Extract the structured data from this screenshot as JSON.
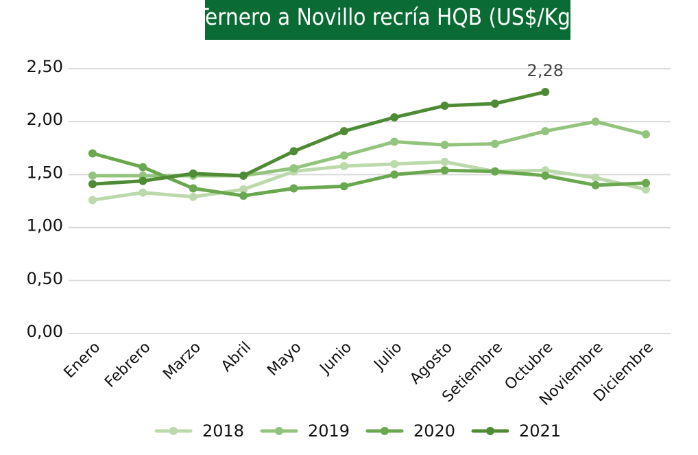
{
  "chart_data": {
    "type": "line",
    "title": "Ternero a Novillo recría HQB (US$/Kg)",
    "categories": [
      "Enero",
      "Febrero",
      "Marzo",
      "Abril",
      "Mayo",
      "Junio",
      "Julio",
      "Agosto",
      "Setiembre",
      "Octubre",
      "Noviembre",
      "Diciembre"
    ],
    "y_ticks": [
      "0,00",
      "0,50",
      "1,00",
      "1,50",
      "2,00",
      "2,50"
    ],
    "ylim": [
      0,
      2.5
    ],
    "grid": true,
    "legend_position": "bottom",
    "xlabel": "",
    "ylabel": "",
    "series": [
      {
        "name": "2018",
        "color": "#bcd9ac",
        "values": [
          1.26,
          1.33,
          1.29,
          1.36,
          1.53,
          1.58,
          1.6,
          1.62,
          1.53,
          1.54,
          1.47,
          1.36
        ]
      },
      {
        "name": "2019",
        "color": "#93c47d",
        "values": [
          1.49,
          1.49,
          1.49,
          1.49,
          1.56,
          1.68,
          1.81,
          1.78,
          1.79,
          1.91,
          2.0,
          1.88
        ]
      },
      {
        "name": "2020",
        "color": "#6aa84f",
        "values": [
          1.7,
          1.57,
          1.37,
          1.3,
          1.37,
          1.39,
          1.5,
          1.54,
          1.53,
          1.49,
          1.4,
          1.42
        ]
      },
      {
        "name": "2021",
        "color": "#4f8a34",
        "values": [
          1.41,
          1.44,
          1.51,
          1.49,
          1.72,
          1.91,
          2.04,
          2.15,
          2.17,
          2.28,
          null,
          null
        ]
      }
    ],
    "annotations": [
      {
        "text": "2,28",
        "series": "2021",
        "category": "Octubre",
        "value": 2.28
      }
    ]
  }
}
